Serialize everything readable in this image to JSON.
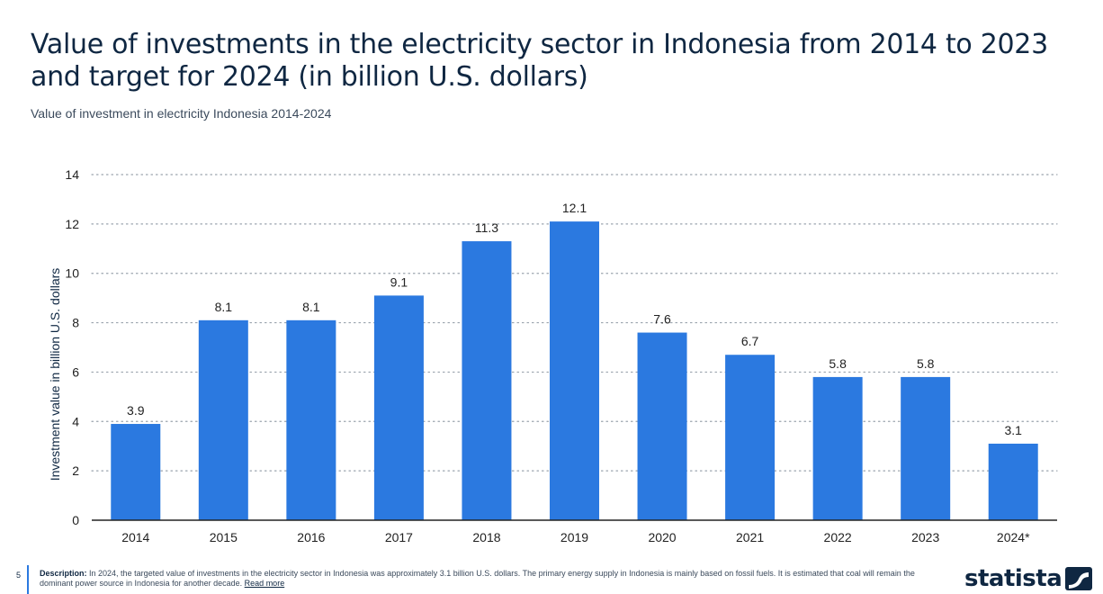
{
  "header": {
    "title": "Value of investments in the electricity sector in Indonesia from 2014 to 2023 and target for 2024 (in billion U.S. dollars)",
    "subtitle": "Value of investment in electricity Indonesia 2014-2024"
  },
  "footer": {
    "page_number": "5",
    "description_label": "Description:",
    "description_text": "In 2024, the targeted value of investments in the electricity sector in Indonesia was approximately 3.1 billion U.S. dollars. The primary energy supply in Indonesia is mainly based on fossil fuels. It is estimated that coal will remain the dominant power source in Indonesia for another decade.",
    "read_more": "Read more",
    "logo_text": "statista"
  },
  "colors": {
    "bar": "#2b79e0",
    "title": "#0f2742",
    "grid": "#9aa3ad",
    "axis": "#222222"
  },
  "chart_data": {
    "type": "bar",
    "categories": [
      "2014",
      "2015",
      "2016",
      "2017",
      "2018",
      "2019",
      "2020",
      "2021",
      "2022",
      "2023",
      "2024*"
    ],
    "values": [
      3.9,
      8.1,
      8.1,
      9.1,
      11.3,
      12.1,
      7.6,
      6.7,
      5.8,
      5.8,
      3.1
    ],
    "data_labels": [
      "3.9",
      "8.1",
      "8.1",
      "9.1",
      "11.3",
      "12.1",
      "7.6",
      "6.7",
      "5.8",
      "5.8",
      "3.1"
    ],
    "ylabel": "Investment value in billion U.S. dollars",
    "xlabel": "",
    "ylim": [
      0,
      14
    ],
    "yticks": [
      0,
      2,
      4,
      6,
      8,
      10,
      12,
      14
    ],
    "grid": true,
    "legend": "none"
  }
}
